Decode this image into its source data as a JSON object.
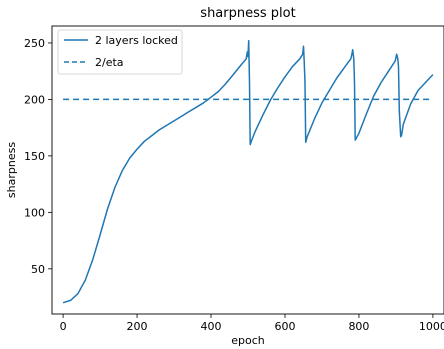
{
  "chart_data": {
    "type": "line",
    "title": "sharpness plot",
    "xlabel": "epoch",
    "ylabel": "sharpness",
    "xlim": [
      -30,
      1030
    ],
    "ylim": [
      10,
      265
    ],
    "x_ticks": [
      0,
      200,
      400,
      600,
      800,
      1000
    ],
    "y_ticks": [
      50,
      100,
      150,
      200,
      250
    ],
    "grid": false,
    "legend_position": "top-left",
    "series": [
      {
        "name": "2 layers locked",
        "style": "solid",
        "color": "#1f77b4",
        "x": [
          0,
          20,
          40,
          60,
          80,
          100,
          120,
          140,
          160,
          180,
          200,
          220,
          240,
          260,
          280,
          300,
          320,
          340,
          360,
          380,
          400,
          420,
          440,
          460,
          480,
          495,
          498,
          500,
          502,
          504,
          506,
          510,
          520,
          540,
          560,
          580,
          600,
          620,
          640,
          648,
          650,
          652,
          654,
          656,
          660,
          680,
          700,
          720,
          740,
          760,
          778,
          781,
          783,
          786,
          788,
          790,
          800,
          820,
          840,
          860,
          880,
          898,
          902,
          905,
          907,
          909,
          913,
          915,
          920,
          940,
          960,
          980,
          1000
        ],
        "y": [
          20,
          22,
          28,
          40,
          58,
          80,
          103,
          122,
          137,
          148,
          156,
          163,
          168,
          173,
          177,
          181,
          185,
          189,
          193,
          197,
          202,
          207,
          214,
          222,
          230,
          236,
          242,
          238,
          252,
          215,
          160,
          164,
          172,
          186,
          199,
          210,
          220,
          229,
          236,
          240,
          247,
          234,
          215,
          162,
          167,
          183,
          197,
          208,
          219,
          228,
          236,
          240,
          244,
          236,
          215,
          164,
          170,
          187,
          203,
          215,
          225,
          234,
          240,
          236,
          229,
          190,
          167,
          168,
          178,
          196,
          208,
          215,
          222
        ]
      },
      {
        "name": "2/eta",
        "style": "dashed",
        "color": "#1f77b4",
        "x": [
          0,
          1000
        ],
        "y": [
          200,
          200
        ]
      }
    ]
  }
}
